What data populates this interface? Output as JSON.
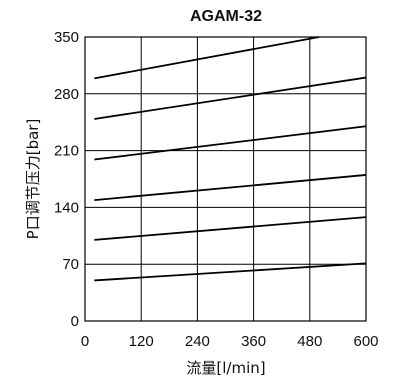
{
  "chart_data": {
    "type": "line",
    "title": "AGAM-32",
    "xlabel": "流量[l/min]",
    "ylabel": "P口调节压力[bar]",
    "xlim": [
      0,
      600
    ],
    "ylim": [
      0,
      350
    ],
    "xticks": [
      "0",
      "120",
      "240",
      "360",
      "480",
      "600"
    ],
    "yticks": [
      "0",
      "70",
      "140",
      "210",
      "280",
      "350"
    ],
    "grid": true,
    "series": [
      {
        "x": [
          20,
          600
        ],
        "y": [
          50,
          71
        ]
      },
      {
        "x": [
          20,
          600
        ],
        "y": [
          100,
          128
        ]
      },
      {
        "x": [
          20,
          600
        ],
        "y": [
          149,
          180
        ]
      },
      {
        "x": [
          20,
          600
        ],
        "y": [
          199,
          240
        ]
      },
      {
        "x": [
          20,
          600
        ],
        "y": [
          249,
          300
        ]
      },
      {
        "x": [
          20,
          500
        ],
        "y": [
          299,
          350
        ]
      }
    ],
    "line_color": "#000000"
  }
}
